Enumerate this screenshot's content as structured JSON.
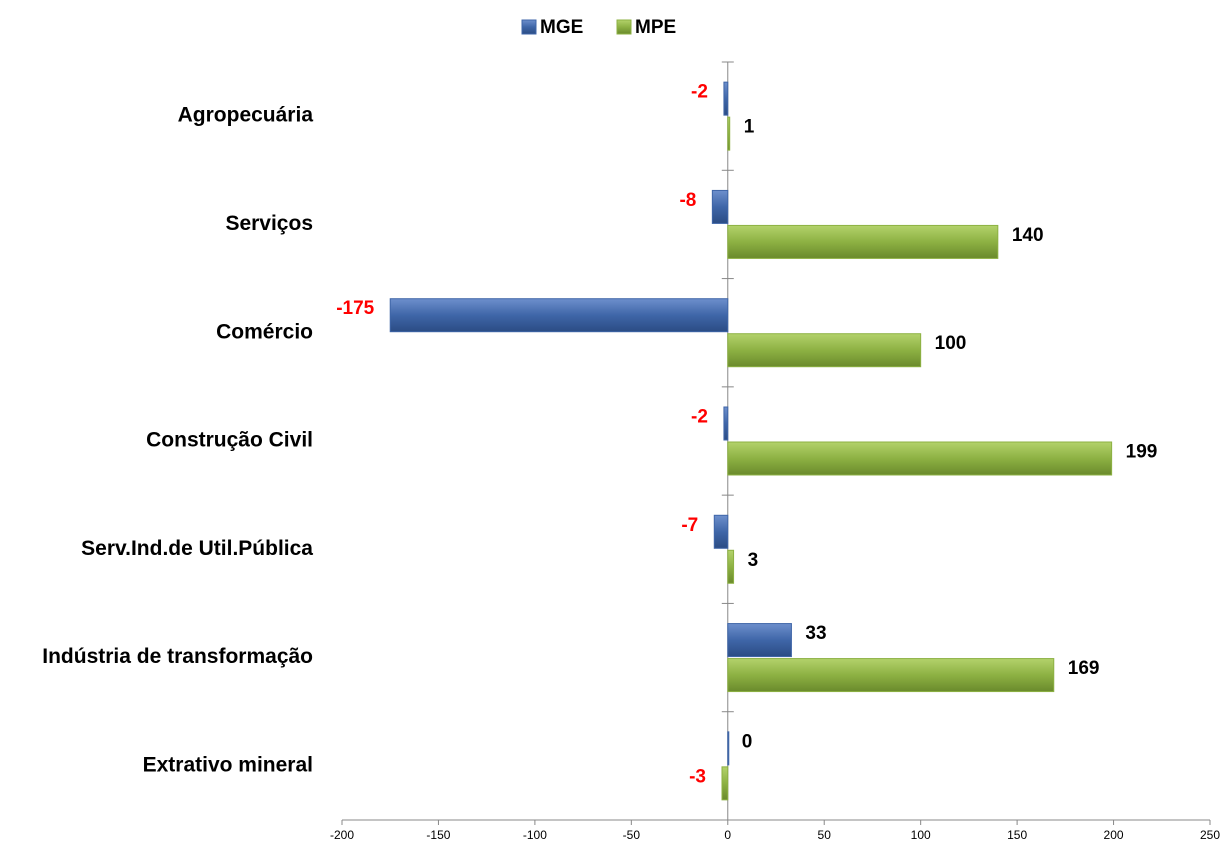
{
  "chart_data": {
    "type": "barh",
    "categories": [
      "Agropecuária",
      "Serviços",
      "Comércio",
      "Construção Civil",
      "Serv.Ind.de Util.Pública",
      "Indústria de transformação",
      "Extrativo mineral"
    ],
    "series": [
      {
        "name": "MGE",
        "color": "#3f66a8",
        "values": [
          -2,
          -8,
          -175,
          -2,
          -7,
          33,
          0
        ]
      },
      {
        "name": "MPE",
        "color": "#8db143",
        "values": [
          1,
          140,
          100,
          199,
          3,
          169,
          -3
        ]
      }
    ],
    "xlim": [
      -200,
      250
    ],
    "xticks": [
      -200,
      -150,
      -100,
      -50,
      0,
      50,
      100,
      150,
      200,
      250
    ],
    "legend": "top"
  }
}
